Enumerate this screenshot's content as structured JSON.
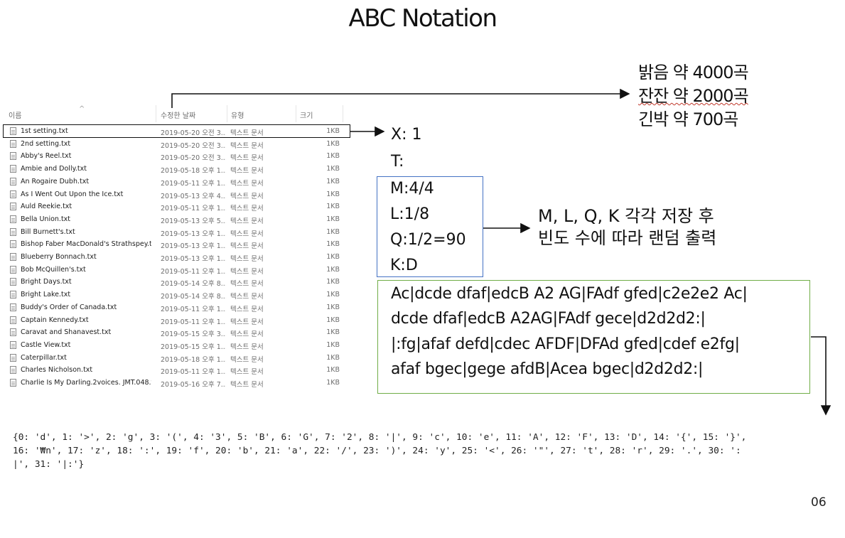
{
  "slide": {
    "title": "ABC Notation",
    "page_number": "06"
  },
  "explorer": {
    "headers": {
      "name": "이름",
      "date": "수정한 날짜",
      "type": "유형",
      "size": "크기"
    },
    "files": [
      {
        "name": "1st setting.txt",
        "date": "2019-05-20 오전 3...",
        "type": "텍스트 문서",
        "size": "1KB"
      },
      {
        "name": "2nd setting.txt",
        "date": "2019-05-20 오전 3...",
        "type": "텍스트 문서",
        "size": "1KB"
      },
      {
        "name": "Abby's Reel.txt",
        "date": "2019-05-20 오전 3...",
        "type": "텍스트 문서",
        "size": "1KB"
      },
      {
        "name": "Ambie and Dolly.txt",
        "date": "2019-05-18 오후 1...",
        "type": "텍스트 문서",
        "size": "1KB"
      },
      {
        "name": "An Rogaire Dubh.txt",
        "date": "2019-05-11 오후 1...",
        "type": "텍스트 문서",
        "size": "1KB"
      },
      {
        "name": "As I Went Out Upon the Ice.txt",
        "date": "2019-05-13 오후 4...",
        "type": "텍스트 문서",
        "size": "1KB"
      },
      {
        "name": "Auld Reekie.txt",
        "date": "2019-05-11 오후 1...",
        "type": "텍스트 문서",
        "size": "1KB"
      },
      {
        "name": "Bella Union.txt",
        "date": "2019-05-13 오후 5...",
        "type": "텍스트 문서",
        "size": "1KB"
      },
      {
        "name": "Bill Burnett's.txt",
        "date": "2019-05-13 오후 1...",
        "type": "텍스트 문서",
        "size": "1KB"
      },
      {
        "name": "Bishop Faber MacDonald's Strathspey.txt",
        "date": "2019-05-13 오후 1...",
        "type": "텍스트 문서",
        "size": "1KB"
      },
      {
        "name": "Blueberry Bonnach.txt",
        "date": "2019-05-13 오후 1...",
        "type": "텍스트 문서",
        "size": "1KB"
      },
      {
        "name": "Bob McQuillen's.txt",
        "date": "2019-05-11 오후 1...",
        "type": "텍스트 문서",
        "size": "1KB"
      },
      {
        "name": "Bright Days.txt",
        "date": "2019-05-14 오후 8...",
        "type": "텍스트 문서",
        "size": "1KB"
      },
      {
        "name": "Bright Lake.txt",
        "date": "2019-05-14 오후 8...",
        "type": "텍스트 문서",
        "size": "1KB"
      },
      {
        "name": "Buddy's Order of Canada.txt",
        "date": "2019-05-11 오후 1...",
        "type": "텍스트 문서",
        "size": "1KB"
      },
      {
        "name": "Captain Kennedy.txt",
        "date": "2019-05-11 오후 1...",
        "type": "텍스트 문서",
        "size": "1KB"
      },
      {
        "name": "Caravat and Shanavest.txt",
        "date": "2019-05-15 오후 3...",
        "type": "텍스트 문서",
        "size": "1KB"
      },
      {
        "name": "Castle View.txt",
        "date": "2019-05-15 오후 1...",
        "type": "텍스트 문서",
        "size": "1KB"
      },
      {
        "name": "Caterpillar.txt",
        "date": "2019-05-18 오후 1...",
        "type": "텍스트 문서",
        "size": "1KB"
      },
      {
        "name": "Charles Nicholson.txt",
        "date": "2019-05-11 오후 1...",
        "type": "텍스트 문서",
        "size": "1KB"
      },
      {
        "name": "Charlie Is My Darling.2voices. JMT.048.t...",
        "date": "2019-05-16 오후 7...",
        "type": "텍스트 문서",
        "size": "1KB"
      }
    ]
  },
  "counts": {
    "lines": [
      "밝음 약 4000곡",
      "잔잔 약 2000곡",
      "긴박 약 700곡"
    ]
  },
  "abc_header": {
    "x": "X: 1",
    "t": "T:",
    "meta": [
      "M:4/4",
      "L:1/8",
      "Q:1/2=90",
      "K:D"
    ]
  },
  "note": {
    "line1": "M, L, Q, K 각각 저장 후",
    "line2": "빈도 수에 따라 랜덤 출력"
  },
  "music": {
    "lines": [
      "Ac|dcde dfaf|edcB A2 AG|FAdf gfed|c2e2e2 Ac|",
      "dcde dfaf|edcB A2AG|FAdf gece|d2d2d2:|",
      "|:fg|afaf defd|cdec AFDF|DFAd gfed|cdef e2fg|",
      "afaf bgec|gege afdB|Acea bgec|d2d2d2:|"
    ]
  },
  "dictionary": {
    "line1": "{0: 'd', 1: '>', 2: 'g', 3: '(', 4: '3', 5: 'B', 6: 'G', 7: '2', 8: '|', 9: 'c', 10: 'e', 11: 'A', 12: 'F', 13: 'D', 14: '{', 15: '}',",
    "line2": "16: '₩n', 17: 'z', 18: ':', 19: 'f', 20: 'b', 21: 'a', 22: '/', 23: ')', 24: 'y', 25: '<', 26: '\"', 27: 't', 28: 'r', 29: '.', 30: ':",
    "line3": "|', 31: '|:'}"
  }
}
